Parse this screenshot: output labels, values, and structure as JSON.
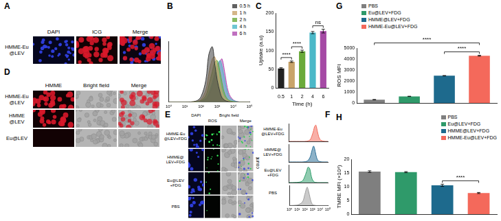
{
  "panels": [
    {
      "letter": "A",
      "columns": [
        "DAPI",
        "ICG",
        "Merge"
      ],
      "rows": [
        "HMME-Eu\n@LEV"
      ]
    },
    {
      "letter": "D",
      "columns": [
        "HMME",
        "Bright field",
        "Merge"
      ],
      "rows": [
        "HMME-Eu\n@LEV",
        "HMME\n@LEV",
        "Eu@LEV"
      ]
    },
    {
      "letter": "E",
      "columns": [
        "DAPI",
        "ROS",
        "Bright field",
        "Merge"
      ],
      "rows": [
        "HMME-Eu\n@LEV+FDG",
        "HMME@\nLEV+FDG",
        "Eu@LEV\n+FDG",
        "PBS"
      ]
    }
  ],
  "chart_data": [
    {
      "panel": "B",
      "type": "area",
      "x": [
        1,
        10,
        50,
        100,
        200,
        300,
        500,
        700,
        1000,
        1500,
        2000,
        3000,
        5000,
        10000,
        30000,
        100000
      ],
      "series": [
        {
          "name": "0.5 h",
          "color": "#3a3a3a",
          "values": [
            0,
            0,
            2,
            10,
            40,
            85,
            100,
            70,
            40,
            18,
            8,
            3,
            1,
            0,
            0,
            0
          ]
        },
        {
          "name": "1 h",
          "color": "#c9a46a",
          "values": [
            0,
            0,
            1,
            5,
            22,
            50,
            78,
            82,
            65,
            35,
            18,
            7,
            2,
            0,
            0,
            0
          ]
        },
        {
          "name": "2 h",
          "color": "#6aaa3a",
          "values": [
            0,
            0,
            1,
            3,
            12,
            30,
            55,
            72,
            75,
            55,
            35,
            14,
            4,
            1,
            0,
            0
          ]
        },
        {
          "name": "4 h",
          "color": "#4bb8c8",
          "values": [
            0,
            0,
            0,
            2,
            7,
            16,
            35,
            52,
            68,
            75,
            65,
            38,
            12,
            3,
            0,
            0
          ]
        },
        {
          "name": "6 h",
          "color": "#b04cb0",
          "values": [
            0,
            0,
            0,
            1,
            5,
            12,
            28,
            45,
            62,
            74,
            78,
            52,
            18,
            4,
            0,
            0
          ]
        }
      ],
      "log": "x",
      "xlim": [
        1,
        100000
      ],
      "xticks": [
        {
          "value": 1,
          "label": "10⁰"
        },
        {
          "value": 10,
          "label": "10¹"
        },
        {
          "value": 100,
          "label": "10²"
        },
        {
          "value": 1000,
          "label": "10³"
        },
        {
          "value": 10000,
          "label": "10⁴"
        },
        {
          "value": 100000,
          "label": "10⁵"
        }
      ],
      "ylim": [
        0,
        110
      ],
      "tick_labels": "x",
      "legend": "upper right",
      "grid": false
    },
    {
      "panel": "C",
      "type": "bar",
      "categories": [
        "0.5",
        "1",
        "2",
        "4",
        "6"
      ],
      "values": [
        52,
        70,
        98,
        148,
        152
      ],
      "errors": [
        2,
        2,
        3,
        3,
        5
      ],
      "colors": [
        "#222222",
        "#c9a46a",
        "#6aaa3a",
        "#4bb8c8",
        "#a54aa5"
      ],
      "ylim": [
        0,
        200
      ],
      "yticks": [
        0,
        50,
        100,
        150,
        200
      ],
      "y_label": "Uptake (a.u)",
      "x_label": "Time (h)",
      "annotations": [
        {
          "between": [
            "0.5",
            "1"
          ],
          "text": "****"
        },
        {
          "between": [
            "1",
            "2"
          ],
          "text": "****"
        },
        {
          "between": [
            "4",
            "6"
          ],
          "text": "ns"
        }
      ],
      "grid": false
    },
    {
      "panel": "F",
      "type": "area",
      "y_label": "count",
      "x": [
        1,
        10,
        50,
        100,
        200,
        300,
        500,
        700,
        1000,
        1500,
        2000,
        3000,
        5000,
        10000,
        30000,
        100000
      ],
      "series": [
        {
          "name": "HMME-Eu\n@LEV+FDG",
          "color": "#f26b5b",
          "values": [
            0,
            0,
            0,
            0,
            1,
            3,
            8,
            18,
            38,
            65,
            90,
            100,
            55,
            12,
            1,
            0
          ]
        },
        {
          "name": "HMME@\nLEV+FDG",
          "color": "#2a6f97",
          "values": [
            0,
            0,
            0,
            1,
            4,
            10,
            25,
            45,
            75,
            98,
            85,
            45,
            12,
            2,
            0,
            0
          ]
        },
        {
          "name": "Eu@LEV\n+FDG",
          "color": "#2e9e6b",
          "values": [
            0,
            1,
            8,
            30,
            70,
            95,
            85,
            50,
            22,
            8,
            3,
            1,
            0,
            0,
            0,
            0
          ]
        },
        {
          "name": "PBS",
          "color": "#9e9e9e",
          "values": [
            0,
            2,
            20,
            60,
            100,
            80,
            40,
            18,
            6,
            2,
            1,
            0,
            0,
            0,
            0,
            0
          ]
        }
      ],
      "log": "x",
      "xlim": [
        1,
        100000
      ],
      "xticks": [
        {
          "value": 1,
          "label": "10⁰"
        },
        {
          "value": 10,
          "label": "10¹"
        },
        {
          "value": 100,
          "label": "10²"
        },
        {
          "value": 1000,
          "label": "10³"
        },
        {
          "value": 10000,
          "label": "10⁴"
        },
        {
          "value": 100000,
          "label": "10⁵"
        }
      ],
      "ylim": [
        0,
        110
      ],
      "tick_labels": "x",
      "grid": false
    },
    {
      "panel": "G",
      "type": "bar",
      "categories": [
        "PBS",
        "Eu@LEV+FDG",
        "HMME@LEV+FDG",
        "HMME-Eu@LEV+FDG"
      ],
      "values": [
        300,
        600,
        2480,
        4300
      ],
      "errors": [
        20,
        15,
        20,
        40
      ],
      "colors": [
        "#7f7f7f",
        "#2f9a6a",
        "#1e6a8d",
        "#f4695b"
      ],
      "ylim": [
        0,
        5000
      ],
      "yticks": [
        0,
        1000,
        2000,
        3000,
        4000,
        5000
      ],
      "y_label": "ROS MFI",
      "tick_labels": "y",
      "legend": "upper left",
      "annotations": [
        {
          "between": [
            "PBS",
            "HMME-Eu@LEV+FDG"
          ],
          "text": "****"
        },
        {
          "between": [
            "HMME@LEV+FDG",
            "HMME-Eu@LEV+FDG"
          ],
          "text": "****"
        }
      ],
      "grid": false
    },
    {
      "panel": "H",
      "type": "bar",
      "categories": [
        "PBS",
        "Eu@LEV+FDG",
        "HMME@LEV+FDG",
        "HMME-Eu@LEV+FDG"
      ],
      "values": [
        15.5,
        15.3,
        10.5,
        7.7
      ],
      "errors": [
        0.3,
        0.2,
        0.4,
        0.2
      ],
      "colors": [
        "#7f7f7f",
        "#2f9a6a",
        "#1e6a8d",
        "#f4695b"
      ],
      "ylim": [
        0,
        20
      ],
      "yticks": [
        0,
        5,
        10,
        15,
        20
      ],
      "y_label": "TMRE MFI (×10⁴)",
      "tick_labels": "y",
      "legend": "upper right",
      "annotations": [
        {
          "between": [
            "HMME@LEV+FDG",
            "HMME-Eu@LEV+FDG"
          ],
          "text": "****"
        }
      ],
      "grid": false
    }
  ]
}
